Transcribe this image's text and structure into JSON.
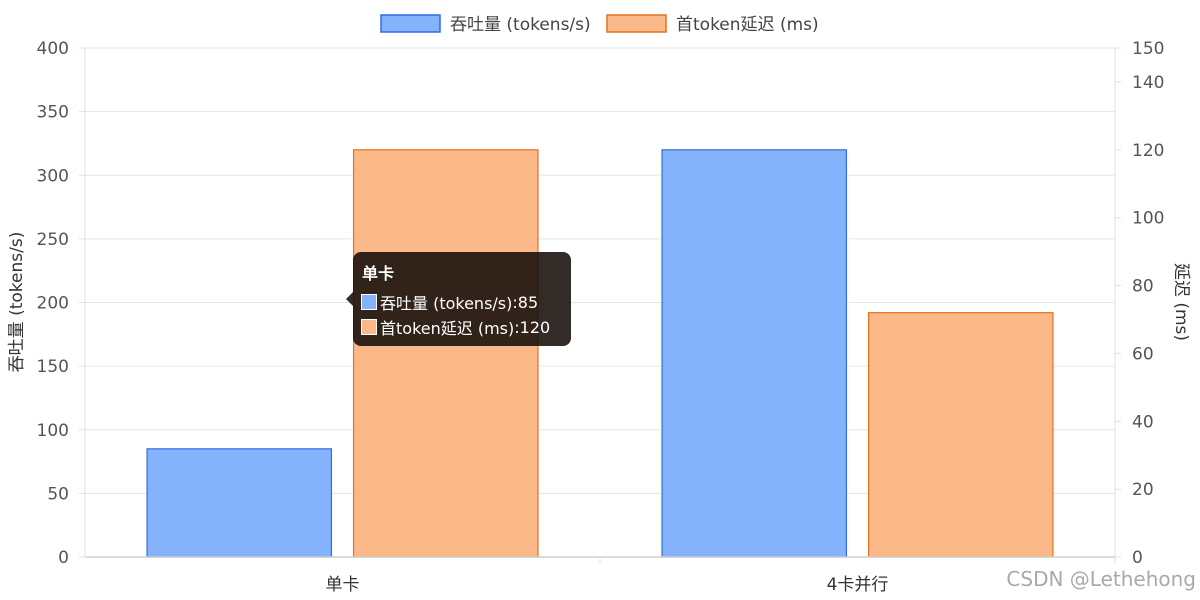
{
  "chart_data": {
    "type": "bar",
    "categories": [
      "单卡",
      "4卡并行"
    ],
    "series": [
      {
        "name": "吞吐量 (tokens/s)",
        "values": [
          85,
          320
        ],
        "axis": "left",
        "fill": "#84b3fb",
        "stroke": "#2a6fe0"
      },
      {
        "name": "首token延迟 (ms)",
        "values": [
          120,
          72
        ],
        "axis": "right",
        "fill": "#fbb888",
        "stroke": "#e9711c"
      }
    ],
    "ylabel": "吞吐量 (tokens/s)",
    "ylabel_right": "延迟 (ms)",
    "ylim": [
      0,
      400
    ],
    "ylim_right": [
      0,
      150
    ],
    "yticks": [
      "0",
      "50",
      "100",
      "150",
      "200",
      "250",
      "300",
      "350",
      "400"
    ],
    "yticks_right": [
      "0",
      "20",
      "40",
      "60",
      "80",
      "100",
      "120",
      "140",
      "150"
    ],
    "legend_position": "top",
    "grid": true
  },
  "tooltip": {
    "title": "单卡",
    "rows": [
      {
        "key": "吞吐量 (tokens/s)",
        "value": "85",
        "color": "#84b3fb"
      },
      {
        "key": "首token延迟 (ms)",
        "value": "120",
        "color": "#fbb888"
      }
    ]
  },
  "watermark": "CSDN @Lethehong"
}
